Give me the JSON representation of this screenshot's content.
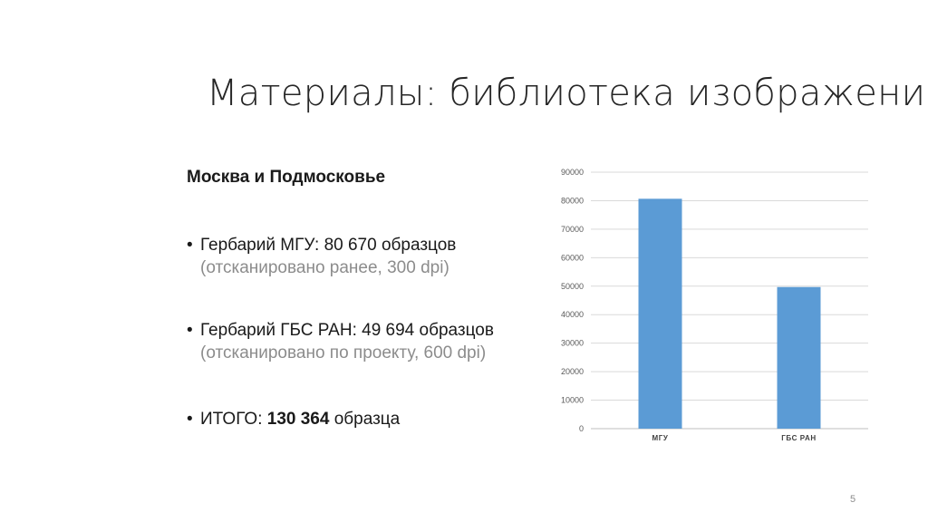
{
  "slide": {
    "title": "Материалы: библиотека изображений",
    "subhead": "Москва и Подмосковье",
    "bullets": [
      {
        "main": "Гербарий МГУ: 80 670 образцов",
        "note": "(отсканировано ранее, 300 dpi)"
      },
      {
        "main": "Гербарий ГБС РАН: 49 694 образцов",
        "note": "(отсканировано по проекту, 600 dpi)"
      },
      {
        "prefix": "ИТОГО: ",
        "bold": "130 364",
        "suffix": " образца"
      }
    ],
    "bullet_char": "•",
    "page_number": "5"
  },
  "chart_data": {
    "type": "bar",
    "categories": [
      "МГУ",
      "ГБС РАН"
    ],
    "values": [
      80670,
      49694
    ],
    "title": "",
    "xlabel": "",
    "ylabel": "",
    "ylim": [
      0,
      90000
    ],
    "yticks": [
      0,
      10000,
      20000,
      30000,
      40000,
      50000,
      60000,
      70000,
      80000,
      90000
    ],
    "grid": true,
    "legend": "none",
    "colors": {
      "bar": "#5b9bd5",
      "grid": "#d9d9d9",
      "axis": "#bfbfbf"
    }
  }
}
